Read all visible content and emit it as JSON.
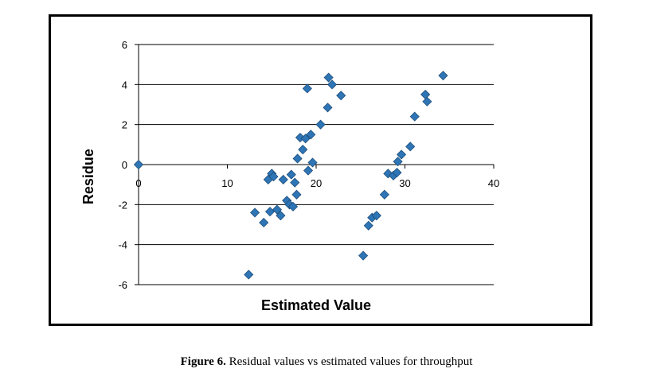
{
  "chart_data": {
    "type": "scatter",
    "xlabel": "Estimated Value",
    "ylabel": "Residue",
    "xlim": [
      0,
      40
    ],
    "ylim": [
      -6,
      6
    ],
    "x_ticks": [
      0,
      10,
      20,
      30,
      40
    ],
    "y_ticks": [
      -6,
      -4,
      -2,
      0,
      2,
      4,
      6
    ],
    "grid": "horizontal",
    "marker_color": "#2E75B6",
    "marker_edge_color": "#1F4E79",
    "points": [
      {
        "x": 0.0,
        "y": 0.0
      },
      {
        "x": 12.4,
        "y": -5.5
      },
      {
        "x": 13.1,
        "y": -2.4
      },
      {
        "x": 14.1,
        "y": -2.9
      },
      {
        "x": 14.6,
        "y": -0.75
      },
      {
        "x": 14.8,
        "y": -2.35
      },
      {
        "x": 15.0,
        "y": -0.45
      },
      {
        "x": 15.2,
        "y": -0.6
      },
      {
        "x": 15.6,
        "y": -2.25
      },
      {
        "x": 16.0,
        "y": -2.55
      },
      {
        "x": 16.3,
        "y": -0.75
      },
      {
        "x": 16.7,
        "y": -1.8
      },
      {
        "x": 17.0,
        "y": -2.0
      },
      {
        "x": 17.2,
        "y": -0.5
      },
      {
        "x": 17.4,
        "y": -2.1
      },
      {
        "x": 17.6,
        "y": -0.9
      },
      {
        "x": 17.8,
        "y": -1.5
      },
      {
        "x": 17.9,
        "y": 0.3
      },
      {
        "x": 18.2,
        "y": 1.35
      },
      {
        "x": 18.5,
        "y": 0.75
      },
      {
        "x": 18.8,
        "y": 1.3
      },
      {
        "x": 19.0,
        "y": 3.8
      },
      {
        "x": 19.1,
        "y": -0.3
      },
      {
        "x": 19.4,
        "y": 1.5
      },
      {
        "x": 19.6,
        "y": 0.1
      },
      {
        "x": 20.5,
        "y": 2.0
      },
      {
        "x": 21.3,
        "y": 2.85
      },
      {
        "x": 21.4,
        "y": 4.35
      },
      {
        "x": 21.8,
        "y": 4.0
      },
      {
        "x": 22.8,
        "y": 3.45
      },
      {
        "x": 25.3,
        "y": -4.55
      },
      {
        "x": 25.9,
        "y": -3.05
      },
      {
        "x": 26.3,
        "y": -2.65
      },
      {
        "x": 26.8,
        "y": -2.55
      },
      {
        "x": 27.7,
        "y": -1.5
      },
      {
        "x": 28.1,
        "y": -0.45
      },
      {
        "x": 28.7,
        "y": -0.55
      },
      {
        "x": 29.1,
        "y": -0.4
      },
      {
        "x": 29.2,
        "y": 0.15
      },
      {
        "x": 29.6,
        "y": 0.5
      },
      {
        "x": 30.6,
        "y": 0.9
      },
      {
        "x": 31.1,
        "y": 2.4
      },
      {
        "x": 32.3,
        "y": 3.5
      },
      {
        "x": 32.5,
        "y": 3.15
      },
      {
        "x": 34.3,
        "y": 4.45
      }
    ]
  },
  "caption": {
    "label": "Figure 6.",
    "text": " Residual values vs estimated values for throughput"
  }
}
